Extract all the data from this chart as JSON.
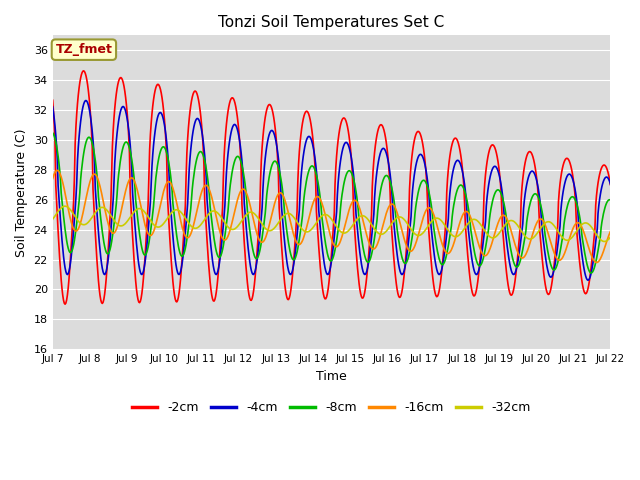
{
  "title": "Tonzi Soil Temperatures Set C",
  "xlabel": "Time",
  "ylabel": "Soil Temperature (C)",
  "xlim": [
    0,
    15
  ],
  "ylim": [
    16,
    37
  ],
  "yticks": [
    16,
    18,
    20,
    22,
    24,
    26,
    28,
    30,
    32,
    34,
    36
  ],
  "xtick_labels": [
    "Jul 7",
    "Jul 8",
    "Jul 9",
    "Jul 10",
    "Jul 11",
    "Jul 12",
    "Jul 13",
    "Jul 14",
    "Jul 15",
    "Jul 16",
    "Jul 17",
    "Jul 18",
    "Jul 19",
    "Jul 20",
    "Jul 21",
    "Jul 22"
  ],
  "xtick_positions": [
    0,
    1,
    2,
    3,
    4,
    5,
    6,
    7,
    8,
    9,
    10,
    11,
    12,
    13,
    14,
    15
  ],
  "legend_label": "TZ_fmet",
  "series_labels": [
    "-2cm",
    "-4cm",
    "-8cm",
    "-16cm",
    "-32cm"
  ],
  "series_colors": [
    "#ff0000",
    "#0000cc",
    "#00bb00",
    "#ff8800",
    "#cccc00"
  ],
  "bg_color": "#dcdcdc",
  "fig_color": "#ffffff",
  "grid_color": "#ffffff"
}
